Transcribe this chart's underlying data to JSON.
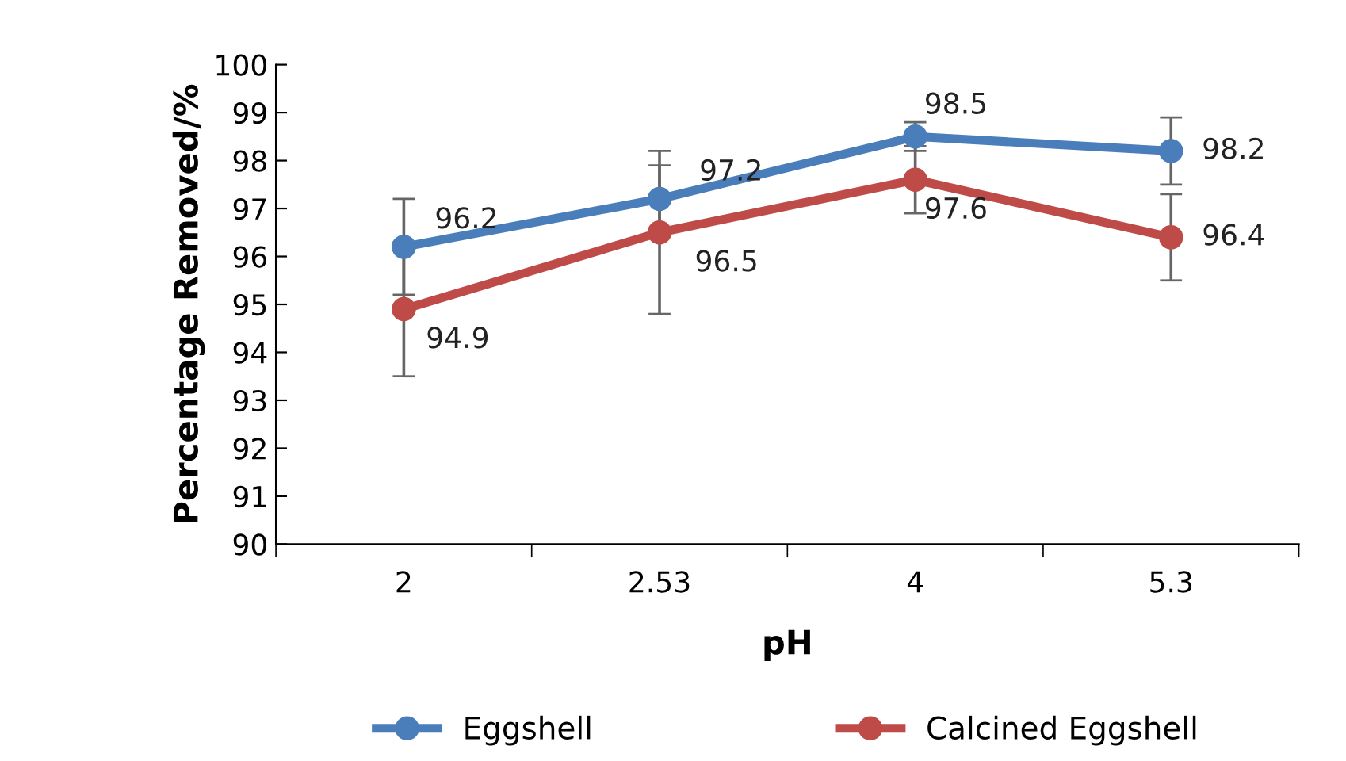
{
  "chart_data": {
    "type": "line",
    "xlabel": "pH",
    "ylabel": "Percentage Removed/%",
    "categories": [
      "2",
      "2.53",
      "4",
      "5.3"
    ],
    "series": [
      {
        "name": "Eggshell",
        "color": "#4a7ebb",
        "values": [
          96.2,
          97.2,
          98.5,
          98.2
        ],
        "errors": [
          1.0,
          0.7,
          0.3,
          0.7
        ]
      },
      {
        "name": "Calcined Eggshell",
        "color": "#be4b48",
        "values": [
          94.9,
          96.5,
          97.6,
          96.4
        ],
        "errors": [
          1.4,
          1.7,
          0.7,
          0.9
        ]
      }
    ],
    "ylim": [
      90,
      100
    ],
    "yticks": [
      90,
      91,
      92,
      93,
      94,
      95,
      96,
      97,
      98,
      99,
      100
    ],
    "data_labels": true,
    "marker": "circle",
    "line_style": "solid",
    "grid": false,
    "legend": "bottom"
  }
}
